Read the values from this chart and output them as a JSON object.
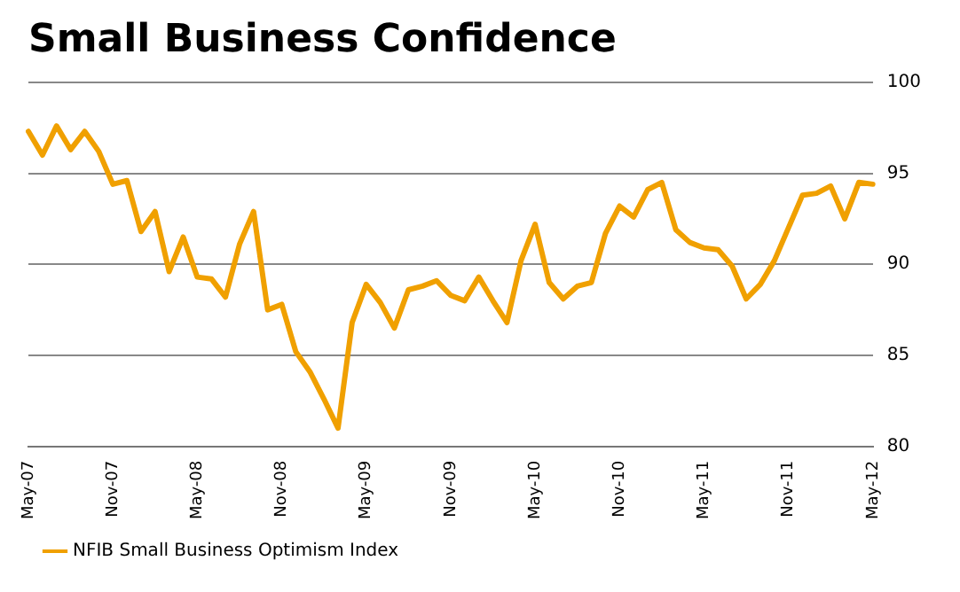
{
  "chart_data": {
    "type": "line",
    "title": "Small Business Confidence",
    "categories": [
      "May-07",
      null,
      null,
      null,
      null,
      null,
      "Nov-07",
      null,
      null,
      null,
      null,
      null,
      "May-08",
      null,
      null,
      null,
      null,
      null,
      "Nov-08",
      null,
      null,
      null,
      null,
      null,
      "May-09",
      null,
      null,
      null,
      null,
      null,
      "Nov-09",
      null,
      null,
      null,
      null,
      null,
      "May-10",
      null,
      null,
      null,
      null,
      null,
      "Nov-10",
      null,
      null,
      null,
      null,
      null,
      "May-11",
      null,
      null,
      null,
      null,
      null,
      "Nov-11",
      null,
      null,
      null,
      null,
      null,
      "May-12"
    ],
    "series": [
      {
        "name": "NFIB Small Business Optimism Index",
        "color": "#f0a000",
        "values": [
          97.3,
          96.0,
          97.6,
          96.3,
          97.3,
          96.2,
          94.4,
          94.6,
          91.8,
          92.9,
          89.6,
          91.5,
          89.3,
          89.2,
          88.2,
          91.1,
          92.9,
          87.5,
          87.8,
          85.2,
          84.1,
          82.6,
          81.0,
          86.8,
          88.9,
          87.9,
          86.5,
          88.6,
          88.8,
          89.1,
          88.3,
          88.0,
          89.3,
          88.0,
          86.8,
          90.2,
          92.2,
          89.0,
          88.1,
          88.8,
          89.0,
          91.7,
          93.2,
          92.6,
          94.1,
          94.5,
          91.9,
          91.2,
          90.9,
          90.8,
          89.9,
          88.1,
          88.9,
          90.2,
          92.0,
          93.8,
          93.9,
          94.3,
          92.5,
          94.5,
          94.4
        ]
      }
    ],
    "ylim": [
      80,
      100
    ],
    "yticks": [
      80,
      85,
      90,
      95,
      100
    ],
    "grid": "y",
    "legend": "bottom left",
    "marker": "none",
    "line_style": "solid"
  }
}
